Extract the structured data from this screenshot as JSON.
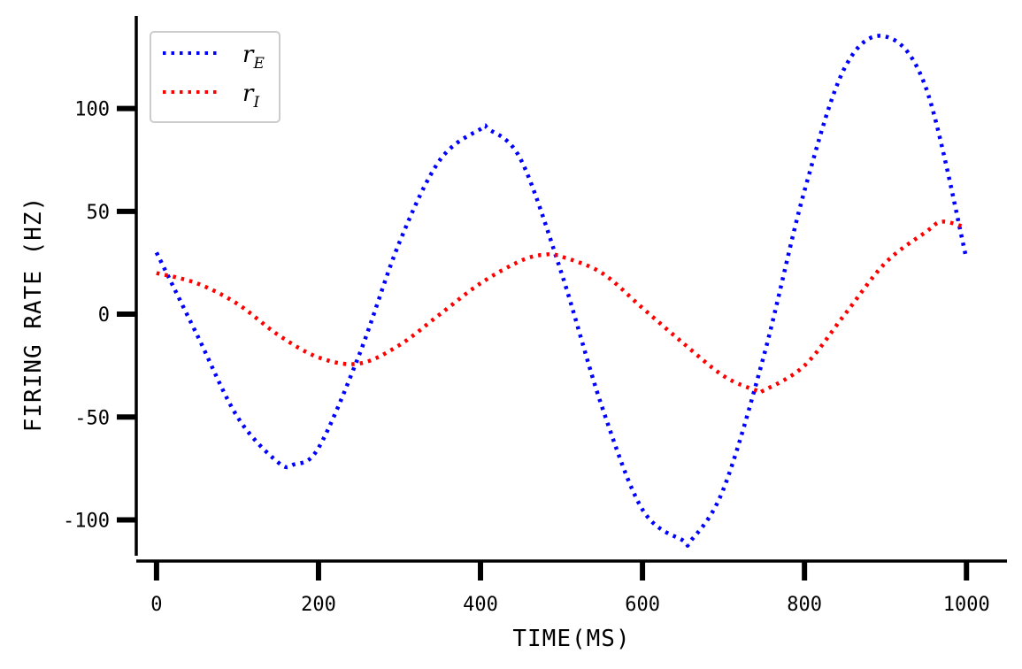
{
  "chart_data": {
    "type": "line",
    "title": "",
    "xlabel": "TIME(MS)",
    "ylabel": "FIRING RATE (HZ)",
    "xlim": [
      -25,
      1050
    ],
    "ylim": [
      -120,
      145
    ],
    "xticks": [
      0,
      200,
      400,
      600,
      800,
      1000
    ],
    "xtick_labels": [
      "0",
      "200",
      "400",
      "600",
      "800",
      "1000"
    ],
    "yticks": [
      -100,
      -50,
      0,
      50,
      100
    ],
    "ytick_labels": [
      "-100",
      "-50",
      "0",
      "50",
      "100"
    ],
    "grid": false,
    "legend_position": "top-left",
    "series": [
      {
        "name": "rE",
        "symbol": "r",
        "subscript": "E",
        "color": "#0000ff",
        "style": "dotted",
        "x": [
          0,
          50,
          100,
          150,
          170,
          200,
          250,
          300,
          350,
          400,
          410,
          450,
          500,
          550,
          600,
          650,
          660,
          700,
          750,
          800,
          850,
          900,
          950,
          1000
        ],
        "y": [
          30,
          -10,
          -50,
          -72,
          -73,
          -65,
          -20,
          35,
          75,
          90,
          90,
          75,
          20,
          -45,
          -95,
          -110,
          -110,
          -85,
          -20,
          60,
          120,
          135,
          110,
          27
        ]
      },
      {
        "name": "rI",
        "symbol": "r",
        "subscript": "I",
        "color": "#ff0000",
        "style": "dotted",
        "x": [
          0,
          50,
          100,
          150,
          200,
          250,
          300,
          350,
          400,
          450,
          480,
          500,
          550,
          600,
          650,
          700,
          740,
          750,
          800,
          850,
          900,
          950,
          970,
          1000
        ],
        "y": [
          20,
          15,
          5,
          -10,
          -21,
          -24,
          -15,
          0,
          15,
          26,
          29,
          28,
          20,
          3,
          -14,
          -30,
          -37,
          -37,
          -25,
          0,
          25,
          40,
          45,
          42
        ]
      }
    ]
  }
}
